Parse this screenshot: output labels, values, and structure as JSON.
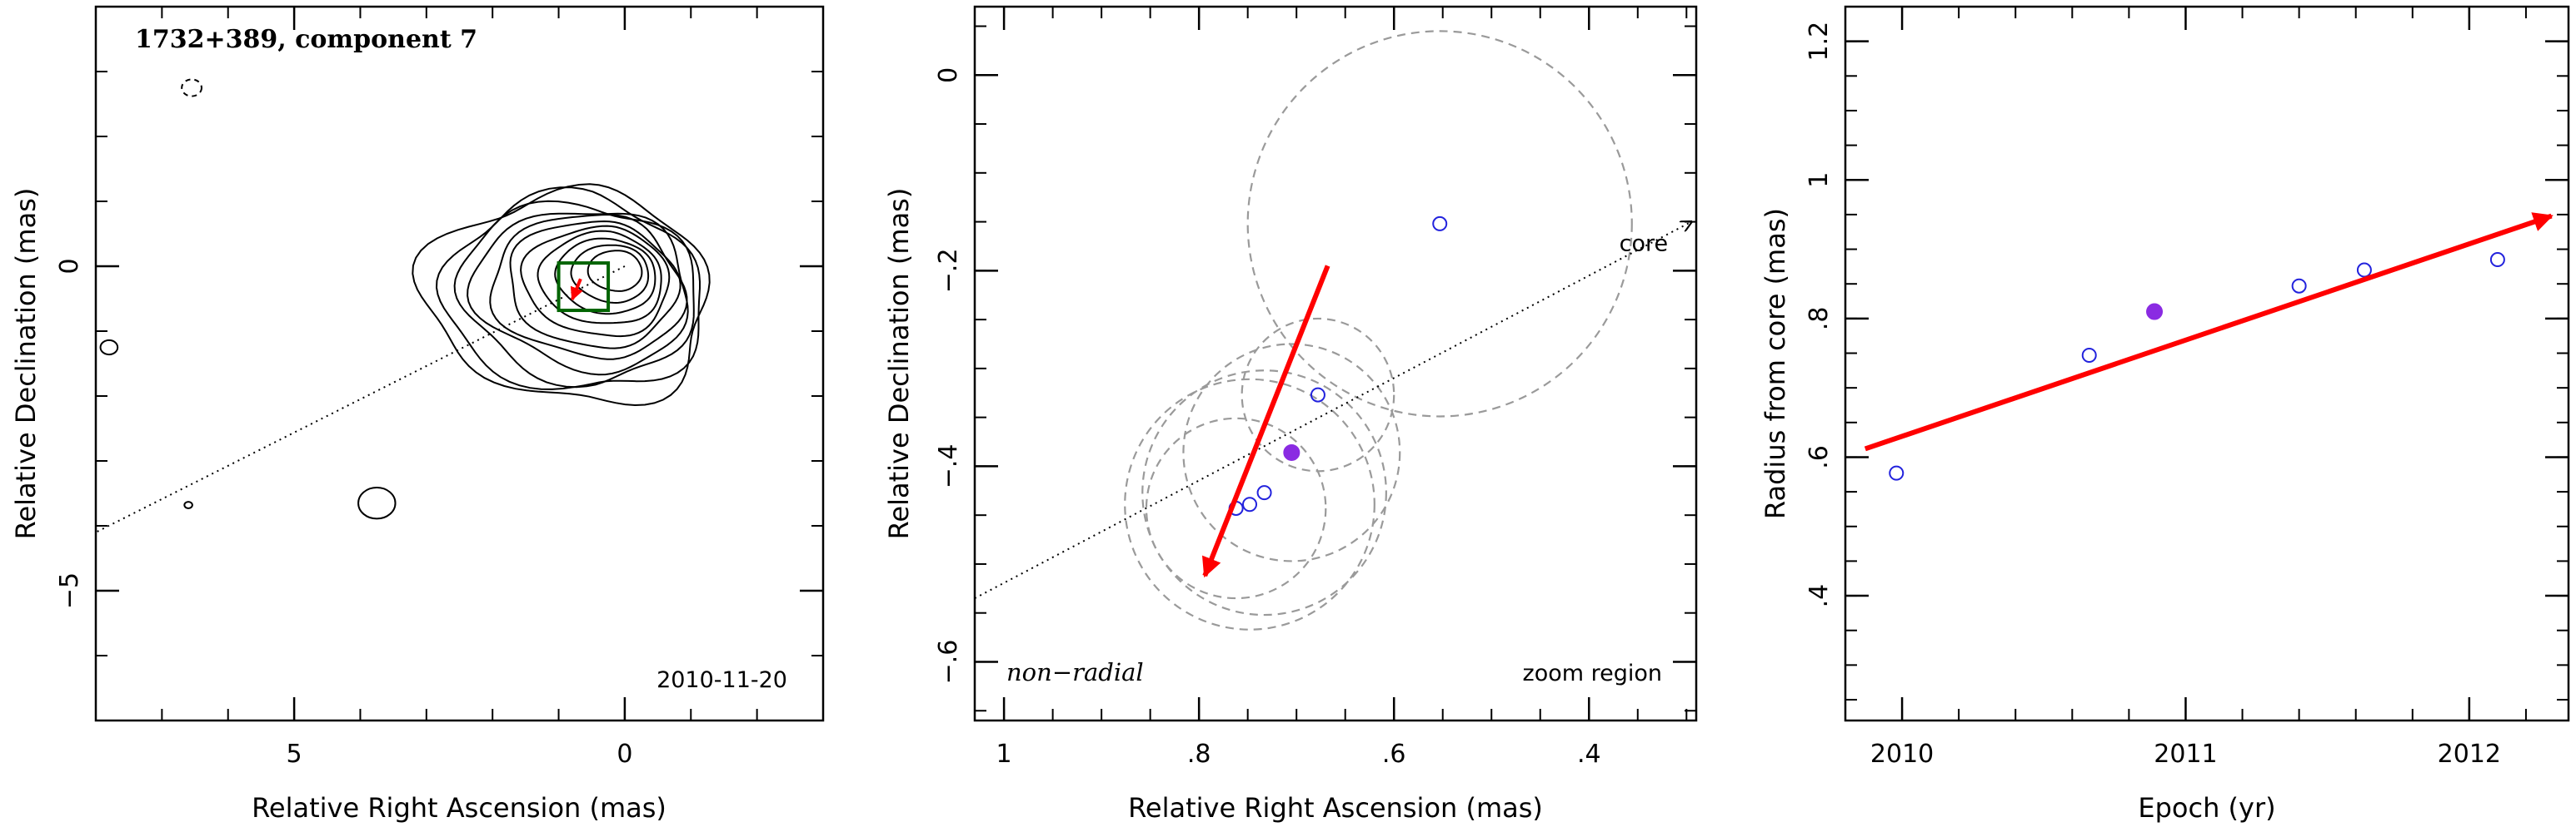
{
  "chart_data": [
    {
      "type": "contour",
      "title": "1732+389, component 7",
      "xlabel": "Relative Right Ascension (mas)",
      "ylabel": "Relative Declination (mas)",
      "xlim": [
        8,
        -3
      ],
      "ylim": [
        -7,
        4
      ],
      "xticks": [
        5,
        0
      ],
      "yticks": [
        0,
        -5
      ],
      "annotation": "2010-11-20",
      "core_direction_line": {
        "from": [
          0,
          0
        ],
        "to": [
          8,
          -4.1
        ]
      },
      "zoom_box": {
        "ra": [
          1.0,
          0.25
        ],
        "dec": [
          -0.68,
          0.05
        ]
      },
      "jet_contour_levels": 11
    },
    {
      "type": "scatter",
      "xlabel": "Relative Right Ascension (mas)",
      "ylabel": "Relative Declination (mas)",
      "xlim": [
        1.03,
        0.29
      ],
      "ylim": [
        -0.66,
        0.07
      ],
      "xticks": [
        1,
        0.8,
        0.6,
        0.4
      ],
      "yticks": [
        0,
        -0.2,
        -0.4,
        -0.6
      ],
      "annotation_left": "non−radial",
      "annotation_right": "zoom region",
      "core_label": "core",
      "core_line": {
        "from": [
          1.03,
          -0.535
        ],
        "to": [
          0.295,
          -0.15
        ]
      },
      "points": [
        {
          "x": 0.762,
          "y": -0.443,
          "r": 0.092
        },
        {
          "x": 0.748,
          "y": -0.439,
          "r": 0.128
        },
        {
          "x": 0.733,
          "y": -0.427,
          "r": 0.125
        },
        {
          "x": 0.705,
          "y": -0.386,
          "r": 0.111,
          "highlight": true
        },
        {
          "x": 0.678,
          "y": -0.327,
          "r": 0.078
        },
        {
          "x": 0.553,
          "y": -0.152,
          "r": 0.197
        }
      ],
      "motion_vector": {
        "from": [
          0.668,
          -0.195
        ],
        "to": [
          0.794,
          -0.512
        ]
      }
    },
    {
      "type": "scatter",
      "xlabel": "Epoch (yr)",
      "ylabel": "Radius from core (mas)",
      "xlim": [
        2009.8,
        2012.35
      ],
      "ylim": [
        0.22,
        1.25
      ],
      "xticks": [
        2010,
        2011,
        2012
      ],
      "yticks": [
        0.4,
        0.6,
        0.8,
        1,
        1.2
      ],
      "points": [
        {
          "x": 2009.98,
          "y": 0.577
        },
        {
          "x": 2010.66,
          "y": 0.747
        },
        {
          "x": 2010.89,
          "y": 0.81,
          "highlight": true
        },
        {
          "x": 2011.4,
          "y": 0.847
        },
        {
          "x": 2011.63,
          "y": 0.87
        },
        {
          "x": 2012.1,
          "y": 0.885
        }
      ],
      "fit_line": {
        "from": [
          2009.87,
          0.612
        ],
        "to": [
          2012.29,
          0.948
        ]
      }
    }
  ],
  "colors": {
    "motion": "#ff0000",
    "open_point": "#2222dd",
    "filled_point": "#8a2be2",
    "zoom_box": "#006400",
    "circle": "#9a9a9a"
  }
}
